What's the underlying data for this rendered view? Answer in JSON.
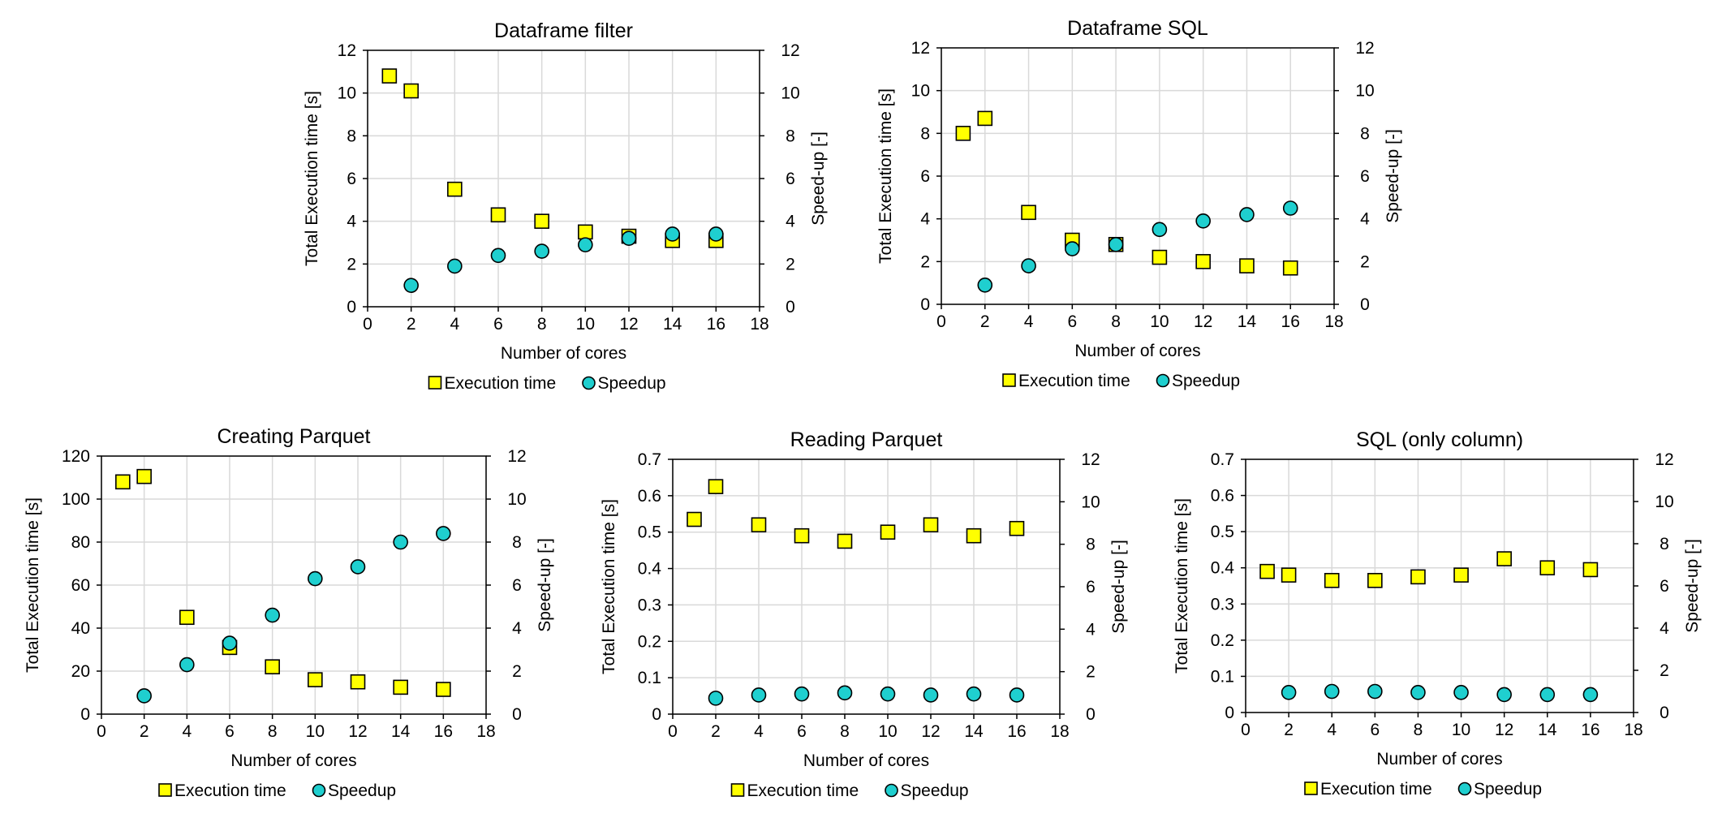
{
  "chart_data": [
    {
      "type": "scatter",
      "title": "Dataframe filter",
      "xlabel": "Number of cores",
      "ylabel": "Total Execution time [s]",
      "y2label": "Speed-up [-]",
      "xlim": [
        0,
        18
      ],
      "xticks": [
        0,
        2,
        4,
        6,
        8,
        10,
        12,
        14,
        16,
        18
      ],
      "ylim": [
        0,
        12
      ],
      "yticks": [
        0,
        2,
        4,
        6,
        8,
        10,
        12
      ],
      "ytick_labels": [
        "0",
        "2",
        "4",
        "6",
        "8",
        "10",
        "12"
      ],
      "y2lim": [
        0,
        12
      ],
      "y2ticks": [
        0,
        2,
        4,
        6,
        8,
        10,
        12
      ],
      "grid": true,
      "legend": [
        "Execution time",
        "Speedup"
      ],
      "legend_position": "bottom",
      "series": [
        {
          "name": "Execution time",
          "axis": "left",
          "marker": "square",
          "color": "#FFFF00",
          "x": [
            1,
            2,
            4,
            6,
            8,
            10,
            12,
            14,
            16
          ],
          "y": [
            10.8,
            10.1,
            5.5,
            4.3,
            4.0,
            3.5,
            3.3,
            3.1,
            3.1
          ]
        },
        {
          "name": "Speedup",
          "axis": "right",
          "marker": "circle",
          "color": "#1FCFCF",
          "x": [
            2,
            4,
            6,
            8,
            10,
            12,
            14,
            16
          ],
          "y": [
            1.0,
            1.9,
            2.4,
            2.6,
            2.9,
            3.2,
            3.4,
            3.4
          ]
        }
      ]
    },
    {
      "type": "scatter",
      "title": "Dataframe SQL",
      "xlabel": "Number of cores",
      "ylabel": "Total Execution time [s]",
      "y2label": "Speed-up [-]",
      "xlim": [
        0,
        18
      ],
      "xticks": [
        0,
        2,
        4,
        6,
        8,
        10,
        12,
        14,
        16,
        18
      ],
      "ylim": [
        0,
        12
      ],
      "yticks": [
        0,
        2,
        4,
        6,
        8,
        10,
        12
      ],
      "ytick_labels": [
        "0",
        "2",
        "4",
        "6",
        "8",
        "10",
        "12"
      ],
      "y2lim": [
        0,
        12
      ],
      "y2ticks": [
        0,
        2,
        4,
        6,
        8,
        10,
        12
      ],
      "grid": true,
      "legend": [
        "Execution time",
        "Speedup"
      ],
      "legend_position": "bottom",
      "series": [
        {
          "name": "Execution time",
          "axis": "left",
          "marker": "square",
          "color": "#FFFF00",
          "x": [
            1,
            2,
            4,
            6,
            8,
            10,
            12,
            14,
            16
          ],
          "y": [
            8.0,
            8.7,
            4.3,
            3.0,
            2.8,
            2.2,
            2.0,
            1.8,
            1.7
          ]
        },
        {
          "name": "Speedup",
          "axis": "right",
          "marker": "circle",
          "color": "#1FCFCF",
          "x": [
            2,
            4,
            6,
            8,
            10,
            12,
            14,
            16
          ],
          "y": [
            0.9,
            1.8,
            2.6,
            2.8,
            3.5,
            3.9,
            4.2,
            4.5
          ]
        }
      ]
    },
    {
      "type": "scatter",
      "title": "Creating Parquet",
      "xlabel": "Number of cores",
      "ylabel": "Total Execution time [s]",
      "y2label": "Speed-up [-]",
      "xlim": [
        0,
        18
      ],
      "xticks": [
        0,
        2,
        4,
        6,
        8,
        10,
        12,
        14,
        16,
        18
      ],
      "ylim": [
        0,
        120
      ],
      "yticks": [
        0,
        20,
        40,
        60,
        80,
        100,
        120
      ],
      "ytick_labels": [
        "0",
        "20",
        "40",
        "60",
        "80",
        "100",
        "120"
      ],
      "y2lim": [
        0,
        12
      ],
      "y2ticks": [
        0,
        2,
        4,
        6,
        8,
        10,
        12
      ],
      "grid": true,
      "legend": [
        "Execution time",
        "Speedup"
      ],
      "legend_position": "bottom",
      "series": [
        {
          "name": "Execution time",
          "axis": "left",
          "marker": "square",
          "color": "#FFFF00",
          "x": [
            1,
            2,
            4,
            6,
            8,
            10,
            12,
            14,
            16
          ],
          "y": [
            108,
            110.5,
            45,
            31,
            22,
            16,
            15,
            12.5,
            11.5
          ]
        },
        {
          "name": "Speedup",
          "axis": "right",
          "marker": "circle",
          "color": "#1FCFCF",
          "x": [
            2,
            4,
            6,
            8,
            10,
            12,
            14,
            16
          ],
          "y": [
            0.85,
            2.3,
            3.3,
            4.6,
            6.3,
            6.85,
            8.0,
            8.4
          ]
        }
      ]
    },
    {
      "type": "scatter",
      "title": "Reading Parquet",
      "xlabel": "Number of cores",
      "ylabel": "Total Execution time [s]",
      "y2label": "Speed-up [-]",
      "xlim": [
        0,
        18
      ],
      "xticks": [
        0,
        2,
        4,
        6,
        8,
        10,
        12,
        14,
        16,
        18
      ],
      "ylim": [
        0,
        0.7
      ],
      "yticks": [
        0,
        0.1,
        0.2,
        0.3,
        0.4,
        0.5,
        0.6,
        0.7
      ],
      "ytick_labels": [
        "0",
        "0.1",
        "0.2",
        "0.3",
        "0.4",
        "0.5",
        "0.6",
        "0.7"
      ],
      "y2lim": [
        0,
        12
      ],
      "y2ticks": [
        0,
        2,
        4,
        6,
        8,
        10,
        12
      ],
      "grid": true,
      "legend": [
        "Execution time",
        "Speedup"
      ],
      "legend_position": "bottom",
      "series": [
        {
          "name": "Execution time",
          "axis": "left",
          "marker": "square",
          "color": "#FFFF00",
          "x": [
            1,
            2,
            4,
            6,
            8,
            10,
            12,
            14,
            16
          ],
          "y": [
            0.535,
            0.625,
            0.52,
            0.49,
            0.475,
            0.5,
            0.52,
            0.49,
            0.51
          ]
        },
        {
          "name": "Speedup",
          "axis": "right",
          "marker": "circle",
          "color": "#1FCFCF",
          "x": [
            2,
            4,
            6,
            8,
            10,
            12,
            14,
            16
          ],
          "y": [
            0.75,
            0.9,
            0.95,
            1.0,
            0.95,
            0.9,
            0.95,
            0.9
          ]
        }
      ]
    },
    {
      "type": "scatter",
      "title": "SQL (only column)",
      "xlabel": "Number of cores",
      "ylabel": "Total Execution time [s]",
      "y2label": "Speed-up [-]",
      "xlim": [
        0,
        18
      ],
      "xticks": [
        0,
        2,
        4,
        6,
        8,
        10,
        12,
        14,
        16,
        18
      ],
      "ylim": [
        0,
        0.7
      ],
      "yticks": [
        0,
        0.1,
        0.2,
        0.3,
        0.4,
        0.5,
        0.6,
        0.7
      ],
      "ytick_labels": [
        "0",
        "0.1",
        "0.2",
        "0.3",
        "0.4",
        "0.5",
        "0.6",
        "0.7"
      ],
      "y2lim": [
        0,
        12
      ],
      "y2ticks": [
        0,
        2,
        4,
        6,
        8,
        10,
        12
      ],
      "grid": true,
      "legend": [
        "Execution time",
        "Speedup"
      ],
      "legend_position": "bottom",
      "series": [
        {
          "name": "Execution time",
          "axis": "left",
          "marker": "square",
          "color": "#FFFF00",
          "x": [
            1,
            2,
            4,
            6,
            8,
            10,
            12,
            14,
            16
          ],
          "y": [
            0.39,
            0.38,
            0.365,
            0.365,
            0.375,
            0.38,
            0.425,
            0.4,
            0.395
          ]
        },
        {
          "name": "Speedup",
          "axis": "right",
          "marker": "circle",
          "color": "#1FCFCF",
          "x": [
            2,
            4,
            6,
            8,
            10,
            12,
            14,
            16
          ],
          "y": [
            0.95,
            1.0,
            1.0,
            0.95,
            0.95,
            0.85,
            0.85,
            0.85
          ]
        }
      ]
    }
  ]
}
